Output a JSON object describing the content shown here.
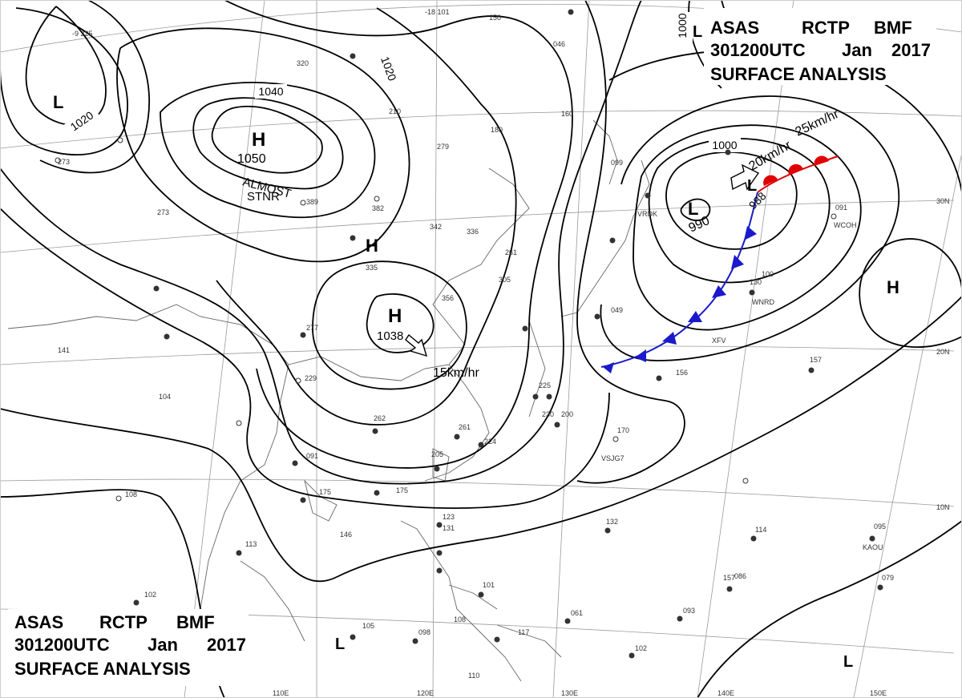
{
  "header": {
    "line1": [
      "ASAS",
      "RCTP",
      "BMF"
    ],
    "line2": [
      "301200UTC",
      "Jan",
      "2017"
    ],
    "line3": "SURFACE ANALYSIS"
  },
  "isobar_labels": [
    "1000",
    "1020",
    "1040",
    "1020",
    "1000"
  ],
  "lat_labels": [
    "30N",
    "20N",
    "10N"
  ],
  "lon_labels": [
    "110E",
    "120E",
    "130E",
    "140E",
    "150E"
  ],
  "pressure_centers": [
    {
      "type": "H",
      "value": "1050",
      "color": "#1a1acc"
    },
    {
      "type": "H",
      "value": "1038",
      "color": "#1a1acc"
    },
    {
      "type": "H",
      "value": "",
      "color": "#1a1acc"
    },
    {
      "type": "H",
      "value": "",
      "color": "#1a1acc"
    },
    {
      "type": "L",
      "value": "990",
      "color": "#e00000"
    },
    {
      "type": "L",
      "value": "988",
      "color": "#e00000"
    },
    {
      "type": "L",
      "value": "",
      "color": "#e00000"
    },
    {
      "type": "L",
      "value": "",
      "color": "#e00000"
    },
    {
      "type": "L",
      "value": "",
      "color": "#e00000"
    },
    {
      "type": "L",
      "value": "",
      "color": "#e00000"
    }
  ],
  "annotations": {
    "stationary_1": "ALMOST",
    "stationary_2": "STNR",
    "motion_1038": "15km/hr",
    "motion_low_a": "20km/hr",
    "motion_low_b": "25km/hr"
  },
  "station_ids": [
    "VRDK",
    "WCOH",
    "WNRD",
    "XFV",
    "VSJG7",
    "KAOU"
  ],
  "station_values": [
    "-9 225",
    "-18 101",
    "279",
    "320",
    "210",
    "180",
    "342",
    "336",
    "335",
    "261",
    "305",
    "356",
    "225",
    "200",
    "230",
    "261",
    "224",
    "205",
    "175",
    "170",
    "156",
    "157",
    "132",
    "114",
    "095",
    "079",
    "061",
    "093",
    "102",
    "098",
    "105",
    "108",
    "101",
    "123",
    "131",
    "157",
    "146",
    "113",
    "102",
    "141",
    "104",
    "108",
    "175",
    "091",
    "382",
    "389",
    "273",
    "277",
    "229",
    "150",
    "273",
    "262",
    "130",
    "046",
    "160",
    "099",
    "049",
    "100",
    "091",
    "086",
    "117",
    "110"
  ]
}
